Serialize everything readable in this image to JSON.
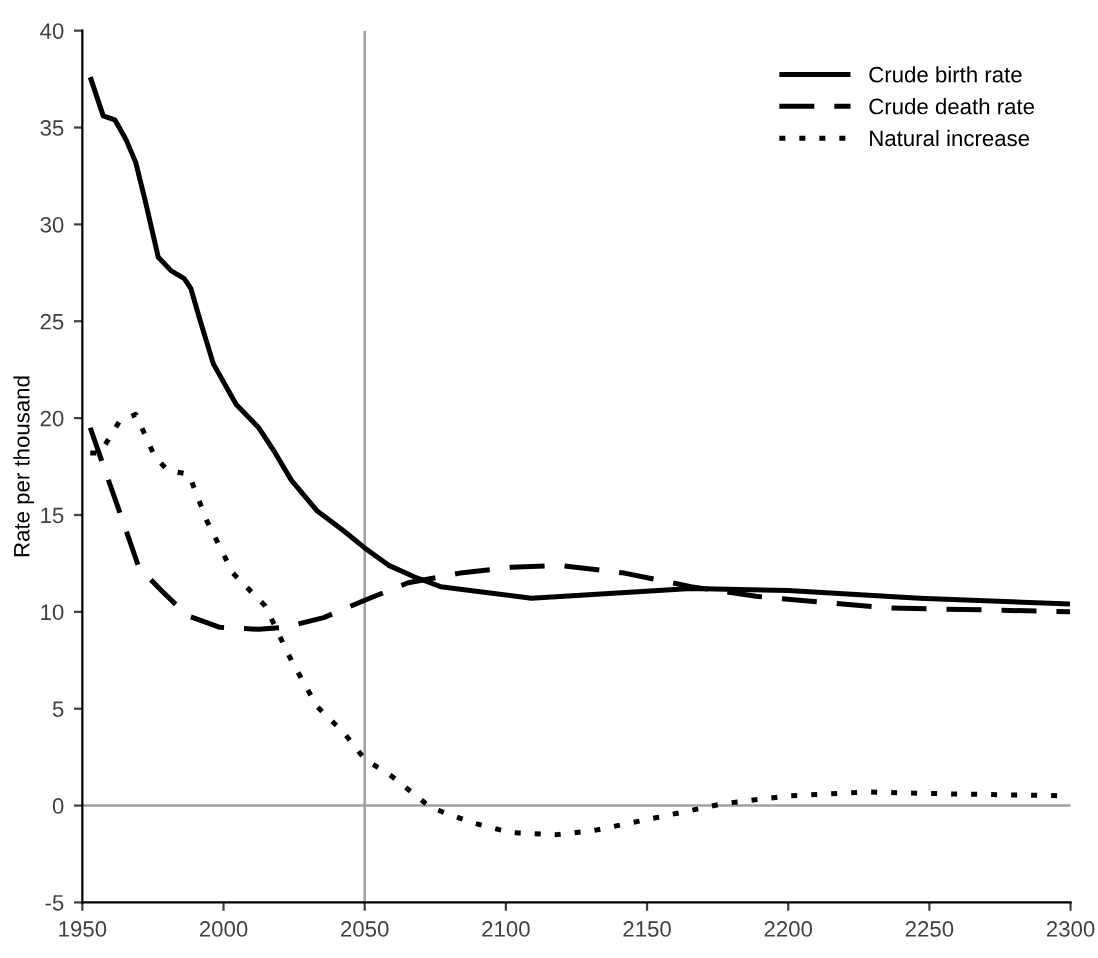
{
  "chart_data": {
    "type": "line",
    "ylabel": "Rate per thousand",
    "xlim": [
      1950,
      2300
    ],
    "xticks": [
      1950,
      2000,
      2050,
      2100,
      2150,
      2200,
      2250,
      2300
    ],
    "ylim": [
      -5,
      40
    ],
    "yticks": [
      -5,
      0,
      5,
      10,
      15,
      20,
      25,
      30,
      35,
      40
    ],
    "grid": false,
    "legend": "top right",
    "ref_lines": [
      {
        "axis": "x",
        "value": 2050,
        "color": "#a0a0a0"
      },
      {
        "axis": "y",
        "value": 0,
        "color": "#a0a0a0"
      }
    ],
    "series": [
      {
        "name": "Crude birth rate",
        "color": "#000000",
        "line_style": "solid",
        "x": [
          1952.8,
          1957.4,
          1961.5,
          1965.4,
          1968.9,
          1972.3,
          1976.9,
          1981.5,
          1986.1,
          1988.4,
          1991.8,
          1996.4,
          2004.5,
          2012.5,
          2018.3,
          2024,
          2033.2,
          2042.4,
          2050,
          2058.5,
          2067.7,
          2076.9,
          2093,
          2109,
          2130.8,
          2165.5,
          2200,
          2246.5,
          2299.8
        ],
        "values": [
          37.6,
          35.6,
          35.4,
          34.4,
          33.2,
          31.2,
          28.3,
          27.6,
          27.2,
          26.7,
          25.0,
          22.8,
          20.7,
          19.5,
          18.2,
          16.8,
          15.2,
          14.2,
          13.3,
          12.4,
          11.8,
          11.3,
          11.0,
          10.7,
          10.9,
          11.2,
          11.1,
          10.7,
          10.4
        ]
      },
      {
        "name": "Crude death rate",
        "color": "#000000",
        "line_style": "dashed",
        "x": [
          1952.8,
          1958.5,
          1964.3,
          1970,
          1978,
          1987.2,
          1998.7,
          2012.5,
          2021.7,
          2035.5,
          2050,
          2065.4,
          2083.8,
          2102,
          2119,
          2142,
          2165.5,
          2188.6,
          2211.8,
          2235,
          2269.7,
          2299.8
        ],
        "values": [
          19.5,
          17.1,
          14.7,
          12.3,
          11.1,
          9.8,
          9.2,
          9.1,
          9.2,
          9.7,
          10.6,
          11.5,
          12.0,
          12.3,
          12.4,
          12.0,
          11.3,
          10.8,
          10.5,
          10.2,
          10.1,
          10.0
        ]
      },
      {
        "name": "Natural increase",
        "color": "#000000",
        "line_style": "dotted",
        "x": [
          1952.8,
          1956.3,
          1963,
          1968.9,
          1975.7,
          1980.3,
          1987.7,
          1994.1,
          2003.3,
          2014.8,
          2024,
          2033.2,
          2042.4,
          2050,
          2059.7,
          2073.4,
          2088.4,
          2102,
          2118,
          2130.8,
          2154,
          2177,
          2200,
          2228,
          2258,
          2299.8
        ],
        "values": [
          18.2,
          18.2,
          19.8,
          20.2,
          18.0,
          17.3,
          17.1,
          14.7,
          12.0,
          10.3,
          7.5,
          5.1,
          3.8,
          2.4,
          1.5,
          -0.1,
          -0.9,
          -1.4,
          -1.5,
          -1.3,
          -0.6,
          0.1,
          0.5,
          0.7,
          0.6,
          0.5
        ]
      }
    ]
  }
}
